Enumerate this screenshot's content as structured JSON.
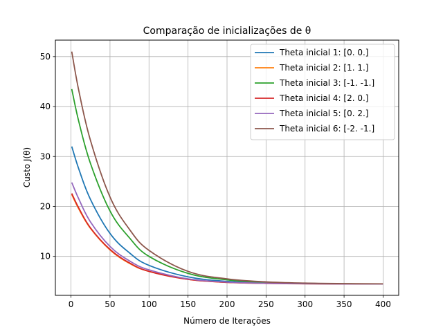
{
  "chart_data": {
    "type": "line",
    "title": "Comparação de inicializações de θ",
    "xlabel": "Número de Iterações",
    "ylabel": "Custo J(θ)",
    "xlim": [
      -20,
      420
    ],
    "ylim": [
      2.2,
      53.3
    ],
    "xticks": [
      0,
      50,
      100,
      150,
      200,
      250,
      300,
      350,
      400
    ],
    "yticks": [
      10,
      20,
      30,
      40,
      50
    ],
    "grid": true,
    "legend_position": "top-right",
    "series": [
      {
        "name": "Theta inicial 1: [0. 0.]",
        "color": "#1f77b4",
        "x": [
          1,
          10,
          25,
          50,
          75,
          100,
          150,
          200,
          250,
          300,
          350,
          400
        ],
        "y": [
          32.0,
          27.5,
          21.4,
          14.6,
          10.7,
          8.2,
          5.9,
          5.0,
          4.7,
          4.55,
          4.5,
          4.48
        ]
      },
      {
        "name": "Theta inicial 2: [1. 1.]",
        "color": "#ff7f0e",
        "x": [
          1,
          10,
          25,
          50,
          75,
          100,
          150,
          200,
          250,
          300,
          350,
          400
        ],
        "y": [
          22.4,
          19.5,
          15.6,
          11.3,
          8.6,
          7.0,
          5.4,
          4.8,
          4.6,
          4.52,
          4.49,
          4.48
        ]
      },
      {
        "name": "Theta inicial 3: [-1. -1.]",
        "color": "#2ca02c",
        "x": [
          1,
          10,
          25,
          50,
          75,
          100,
          150,
          200,
          250,
          300,
          350,
          400
        ],
        "y": [
          43.5,
          37.0,
          28.6,
          19.1,
          13.7,
          10.0,
          6.6,
          5.3,
          4.8,
          4.6,
          4.52,
          4.49
        ]
      },
      {
        "name": "Theta inicial 4: [2. 0.]",
        "color": "#d62728",
        "x": [
          1,
          10,
          25,
          50,
          75,
          100,
          150,
          200,
          250,
          300,
          350,
          400
        ],
        "y": [
          22.6,
          19.7,
          15.7,
          11.4,
          8.7,
          7.0,
          5.4,
          4.8,
          4.6,
          4.52,
          4.49,
          4.48
        ]
      },
      {
        "name": "Theta inicial 5: [0. 2.]",
        "color": "#9467bd",
        "x": [
          1,
          10,
          25,
          50,
          75,
          100,
          150,
          200,
          250,
          300,
          350,
          400
        ],
        "y": [
          24.8,
          21.5,
          16.9,
          12.0,
          9.1,
          7.3,
          5.5,
          4.85,
          4.62,
          4.53,
          4.49,
          4.48
        ]
      },
      {
        "name": "Theta inicial 6: [-2. -1.]",
        "color": "#8c564b",
        "x": [
          1,
          10,
          25,
          50,
          75,
          100,
          150,
          200,
          250,
          300,
          350,
          400
        ],
        "y": [
          51.0,
          43.2,
          33.2,
          21.9,
          15.4,
          11.2,
          7.0,
          5.5,
          4.9,
          4.65,
          4.55,
          4.5
        ]
      }
    ]
  }
}
